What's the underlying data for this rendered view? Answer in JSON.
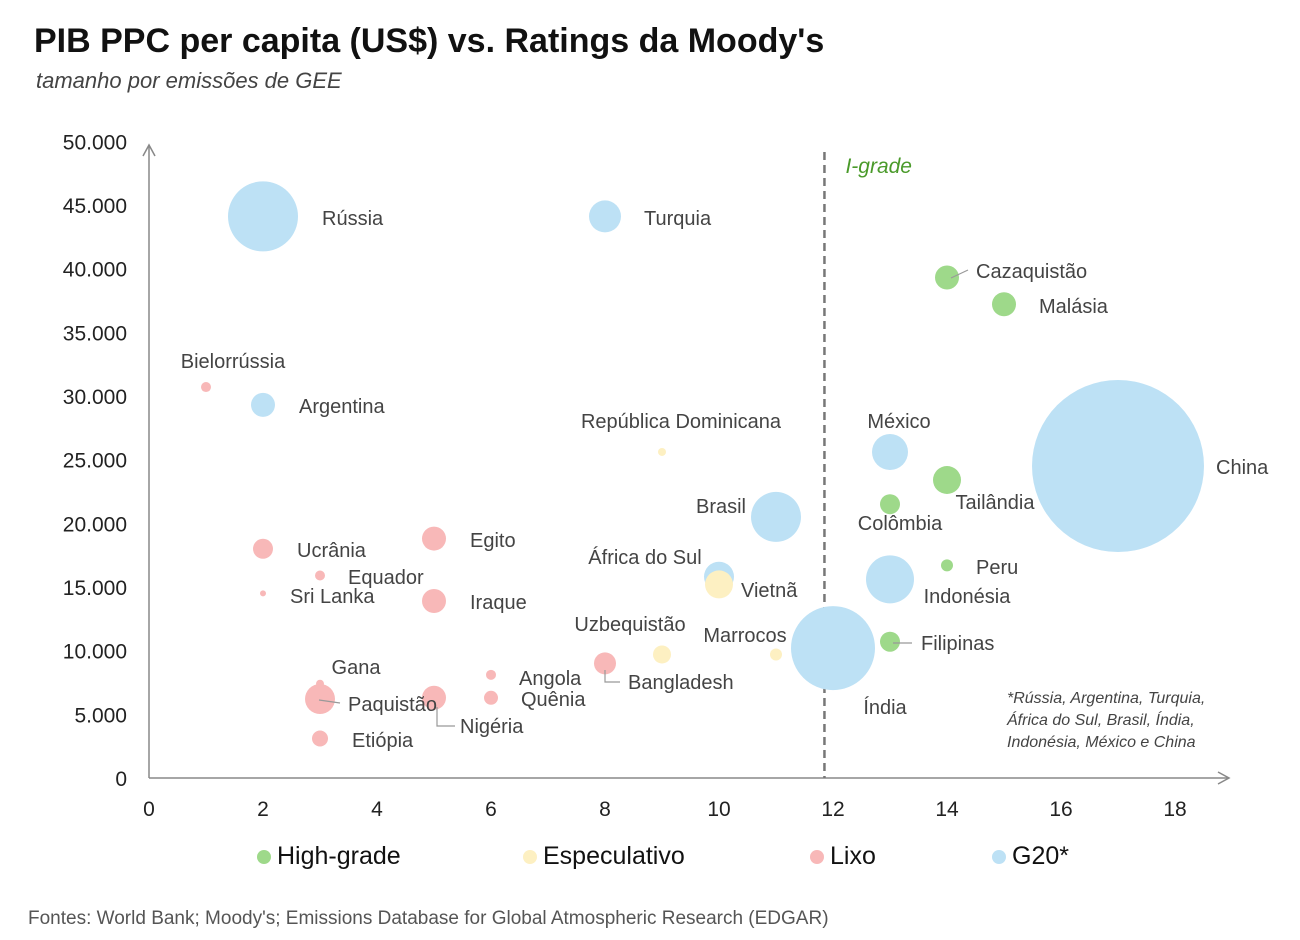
{
  "chart_data": {
    "type": "scatter",
    "title": "PIB PPC per capita (US$) vs. Ratings da Moody's",
    "subtitle": "tamanho por emissões de GEE",
    "xlim": [
      0,
      19
    ],
    "ylim": [
      0,
      50000
    ],
    "xticks": [
      0,
      2,
      4,
      6,
      8,
      10,
      12,
      14,
      16,
      18
    ],
    "yticks": [
      0,
      5000,
      10000,
      15000,
      20000,
      25000,
      30000,
      35000,
      40000,
      45000,
      50000
    ],
    "ytick_labels": [
      "0",
      "5.000",
      "10.000",
      "15.000",
      "20.000",
      "25.000",
      "30.000",
      "35.000",
      "40.000",
      "45.000",
      "50.000"
    ],
    "grid": false,
    "reference_line": {
      "x": 11.85,
      "label": "I-grade",
      "style": "dashed"
    },
    "legend_position": "bottom",
    "categories": [
      {
        "key": "high",
        "name": "High-grade",
        "color": "#9ed98a"
      },
      {
        "key": "spec",
        "name": "Especulativo",
        "color": "#fdf0c2"
      },
      {
        "key": "junk",
        "name": "Lixo",
        "color": "#f8b8b8"
      },
      {
        "key": "g20",
        "name": "G20*",
        "color": "#bde1f5"
      }
    ],
    "points": [
      {
        "label": "Rússia",
        "x": 2,
        "y": 44100,
        "size": 35,
        "cat": "g20"
      },
      {
        "label": "Turquia",
        "x": 8,
        "y": 44100,
        "size": 16,
        "cat": "g20"
      },
      {
        "label": "Cazaquistão",
        "x": 14,
        "y": 39300,
        "size": 12,
        "cat": "high"
      },
      {
        "label": "Malásia",
        "x": 15,
        "y": 37200,
        "size": 12,
        "cat": "high"
      },
      {
        "label": "Bielorrússia",
        "x": 1,
        "y": 30700,
        "size": 5,
        "cat": "junk"
      },
      {
        "label": "Argentina",
        "x": 2,
        "y": 29300,
        "size": 12,
        "cat": "g20"
      },
      {
        "label": "República Dominicana",
        "x": 9,
        "y": 25600,
        "size": 4,
        "cat": "spec"
      },
      {
        "label": "México",
        "x": 13,
        "y": 25600,
        "size": 18,
        "cat": "g20"
      },
      {
        "label": "China",
        "x": 17,
        "y": 24500,
        "size": 86,
        "cat": "g20"
      },
      {
        "label": "Tailândia",
        "x": 14,
        "y": 23400,
        "size": 14,
        "cat": "high"
      },
      {
        "label": "Colômbia",
        "x": 13,
        "y": 21500,
        "size": 10,
        "cat": "high"
      },
      {
        "label": "Brasil",
        "x": 11,
        "y": 20500,
        "size": 25,
        "cat": "g20"
      },
      {
        "label": "Egito",
        "x": 5,
        "y": 18800,
        "size": 12,
        "cat": "junk"
      },
      {
        "label": "Ucrânia",
        "x": 2,
        "y": 18000,
        "size": 10,
        "cat": "junk"
      },
      {
        "label": "Peru",
        "x": 14,
        "y": 16700,
        "size": 6,
        "cat": "high"
      },
      {
        "label": "Equador",
        "x": 3,
        "y": 15900,
        "size": 5,
        "cat": "junk"
      },
      {
        "label": "África do Sul",
        "x": 10,
        "y": 15800,
        "size": 15,
        "cat": "g20"
      },
      {
        "label": "Indonésia",
        "x": 13,
        "y": 15600,
        "size": 24,
        "cat": "g20"
      },
      {
        "label": "Vietnã",
        "x": 10,
        "y": 15200,
        "size": 14,
        "cat": "spec"
      },
      {
        "label": "Sri Lanka",
        "x": 2,
        "y": 14500,
        "size": 3,
        "cat": "junk"
      },
      {
        "label": "Iraque",
        "x": 5,
        "y": 13900,
        "size": 12,
        "cat": "junk"
      },
      {
        "label": "Filipinas",
        "x": 13,
        "y": 10700,
        "size": 10,
        "cat": "high"
      },
      {
        "label": "Índia",
        "x": 12,
        "y": 10200,
        "size": 42,
        "cat": "g20"
      },
      {
        "label": "Uzbequistão",
        "x": 9,
        "y": 9700,
        "size": 9,
        "cat": "spec"
      },
      {
        "label": "Marrocos",
        "x": 11,
        "y": 9700,
        "size": 6,
        "cat": "spec"
      },
      {
        "label": "Bangladesh",
        "x": 8,
        "y": 9000,
        "size": 11,
        "cat": "junk"
      },
      {
        "label": "Angola",
        "x": 6,
        "y": 8100,
        "size": 5,
        "cat": "junk"
      },
      {
        "label": "Gana",
        "x": 3,
        "y": 7400,
        "size": 4,
        "cat": "junk"
      },
      {
        "label": "Quênia",
        "x": 6,
        "y": 6300,
        "size": 7,
        "cat": "junk"
      },
      {
        "label": "Nigéria",
        "x": 5,
        "y": 6300,
        "size": 12,
        "cat": "junk"
      },
      {
        "label": "Paquistão",
        "x": 3,
        "y": 6200,
        "size": 15,
        "cat": "junk"
      },
      {
        "label": "Etiópia",
        "x": 3,
        "y": 3100,
        "size": 8,
        "cat": "junk"
      }
    ],
    "note_lines": [
      "*Rússia, Argentina, Turquia,",
      "África do Sul, Brasil, Índia,",
      "Indonésia, México e China"
    ]
  },
  "source": "Fontes: World Bank; Moody's; Emissions Database for Global Atmospheric Research (EDGAR)"
}
